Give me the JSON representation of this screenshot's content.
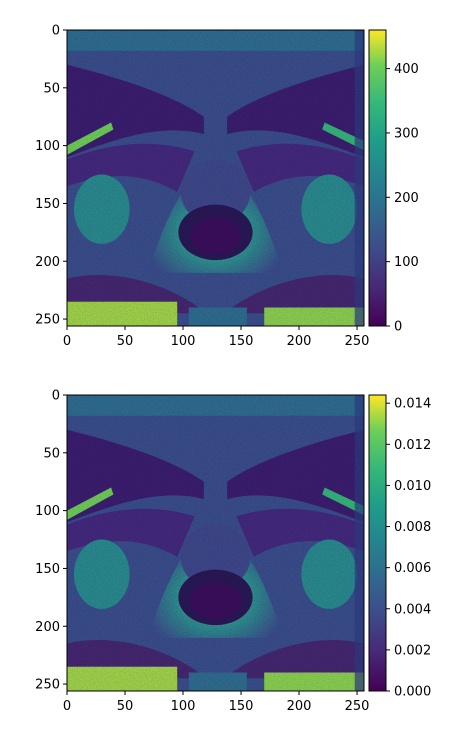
{
  "chart_data": [
    {
      "type": "heatmap",
      "title": "",
      "xlabel": "",
      "ylabel": "",
      "xlim": [
        0,
        256
      ],
      "ylim": [
        256,
        0
      ],
      "x_ticks": [
        0,
        50,
        100,
        150,
        200,
        250
      ],
      "y_ticks": [
        0,
        50,
        100,
        150,
        200,
        250
      ],
      "colormap": "viridis",
      "colorbar": {
        "min": 0,
        "max": 460,
        "ticks": [
          "0",
          "100",
          "200",
          "300",
          "400"
        ],
        "tick_values": [
          0,
          100,
          200,
          300,
          400
        ]
      }
    },
    {
      "type": "heatmap",
      "title": "",
      "xlabel": "",
      "ylabel": "",
      "xlim": [
        0,
        256
      ],
      "ylim": [
        256,
        0
      ],
      "x_ticks": [
        0,
        50,
        100,
        150,
        200,
        250
      ],
      "y_ticks": [
        0,
        50,
        100,
        150,
        200,
        250
      ],
      "colormap": "viridis",
      "colorbar": {
        "min": 0,
        "max": 0.0144,
        "ticks": [
          "0.000",
          "0.002",
          "0.004",
          "0.006",
          "0.008",
          "0.010",
          "0.012",
          "0.014"
        ],
        "tick_values": [
          0,
          0.002,
          0.004,
          0.006,
          0.008,
          0.01,
          0.012,
          0.014
        ]
      }
    }
  ],
  "colors": {
    "viridis_low": "#440154",
    "viridis_mid": "#21918c",
    "viridis_high": "#fde725"
  }
}
